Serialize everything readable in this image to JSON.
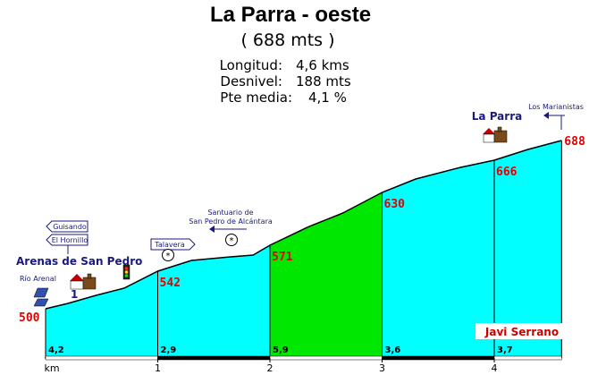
{
  "header": {
    "title": "La Parra - oeste",
    "subtitle": "( 688 mts )",
    "stats": [
      {
        "label": "Longitud:",
        "value": "4,6 kms"
      },
      {
        "label": "Desnivel:",
        "value": "188 mts"
      },
      {
        "label": "Pte media:",
        "value": "4,1 %"
      }
    ]
  },
  "places": {
    "start": "Arenas de San Pedro",
    "end": "La Parra",
    "rio": "Río Arenal",
    "marianistas": "Los Marianistas",
    "guisando": "Guisando",
    "hornillo": "El Hornillo",
    "talavera": "Talavera",
    "santuario_1": "Santuario de",
    "santuario_2": "San Pedro de Alcántara",
    "km_mark": "1"
  },
  "author": "Javi Serrano",
  "colors": {
    "fill_default": "#00ffff",
    "fill_steep": "#00e800",
    "elevation_text": "#e00000",
    "sign_text": "#1a1a80",
    "author_text": "#cc0000"
  },
  "chart_data": {
    "type": "area",
    "title": "La Parra - oeste",
    "x_unit": "km",
    "xlabel": "km",
    "x_ticks": [
      "1",
      "2",
      "3",
      "4"
    ],
    "ylim": [
      500,
      688
    ],
    "profile": [
      {
        "x": 0.0,
        "y": 500
      },
      {
        "x": 0.2,
        "y": 506
      },
      {
        "x": 0.45,
        "y": 515
      },
      {
        "x": 0.7,
        "y": 523
      },
      {
        "x": 1.0,
        "y": 542
      },
      {
        "x": 1.3,
        "y": 554
      },
      {
        "x": 1.65,
        "y": 558
      },
      {
        "x": 1.85,
        "y": 560
      },
      {
        "x": 2.0,
        "y": 571
      },
      {
        "x": 2.35,
        "y": 592
      },
      {
        "x": 2.65,
        "y": 607
      },
      {
        "x": 3.0,
        "y": 630
      },
      {
        "x": 3.3,
        "y": 645
      },
      {
        "x": 3.7,
        "y": 658
      },
      {
        "x": 4.0,
        "y": 666
      },
      {
        "x": 4.3,
        "y": 678
      },
      {
        "x": 4.6,
        "y": 688
      }
    ],
    "segments": [
      {
        "from_km": 0,
        "to_km": 1,
        "start_elevation": "500",
        "gradient": "4,2",
        "steep": false
      },
      {
        "from_km": 1,
        "to_km": 2,
        "start_elevation": "542",
        "gradient": "2,9",
        "steep": false
      },
      {
        "from_km": 2,
        "to_km": 3,
        "start_elevation": "571",
        "gradient": "5,9",
        "steep": true
      },
      {
        "from_km": 3,
        "to_km": 4,
        "start_elevation": "630",
        "gradient": "3,6",
        "steep": false
      },
      {
        "from_km": 4,
        "to_km": 4.6,
        "start_elevation": "666",
        "gradient": "3,7",
        "steep": false
      }
    ],
    "summit_elevation": "688"
  }
}
